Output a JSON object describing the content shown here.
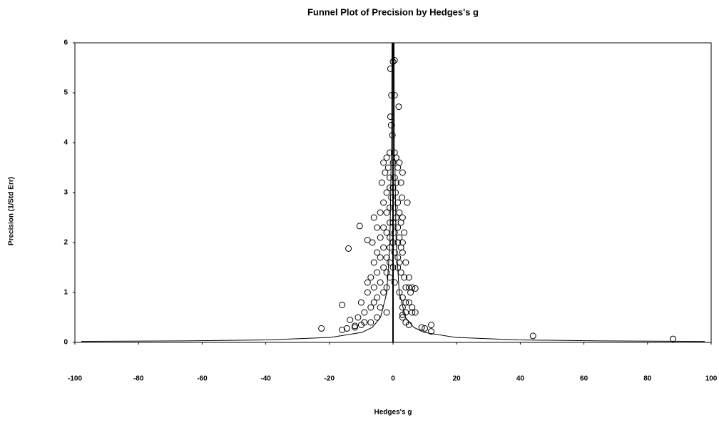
{
  "chart_data": {
    "type": "scatter",
    "title": "Funnel Plot of Precision by Hedges's g",
    "x_label": "Hedges's g",
    "y_label": "Precision (1/Std Err)",
    "xlim": [
      -100,
      100
    ],
    "ylim": [
      0,
      6
    ],
    "xticks": [
      -100,
      -80,
      -60,
      -40,
      -20,
      0,
      20,
      40,
      60,
      80,
      100
    ],
    "yticks": [
      0,
      1,
      2,
      3,
      4,
      5,
      6
    ],
    "color": "#000000",
    "mean_line": 0,
    "funnel": {
      "y": [
        0.02,
        0.03,
        0.05,
        0.1,
        0.2,
        0.3,
        0.5,
        1,
        2,
        4,
        6
      ],
      "lower": [
        -98,
        -65.3,
        -39.2,
        -19.6,
        -9.8,
        -6.53,
        -3.92,
        -1.96,
        -0.98,
        -0.49,
        -0.33
      ],
      "upper": [
        98,
        65.3,
        39.2,
        19.6,
        9.8,
        6.53,
        3.92,
        1.96,
        0.98,
        0.49,
        0.33
      ]
    },
    "x": [
      -22.5,
      -16,
      -14,
      -10.5,
      -8,
      -16,
      -14.5,
      -13.5,
      -12,
      12,
      12,
      10,
      44,
      88,
      0,
      0.5,
      -0.8,
      0.5,
      -0.5,
      1.8,
      -0.8,
      -0.6,
      -0.2,
      7,
      5,
      6,
      5,
      3,
      -1,
      0.5,
      -2,
      1,
      -3,
      0,
      2,
      -1.5,
      1.5,
      -2.5,
      3,
      0.5,
      -1,
      -3.5,
      1,
      2.5,
      -1,
      0,
      0.8,
      -2,
      -0.5,
      2.8,
      -3,
      1.5,
      4.5,
      -1,
      0.5,
      -2,
      2,
      -4,
      -6,
      1,
      3,
      -1,
      0,
      2.5,
      -3,
      1.5,
      -5,
      -2,
      0.5,
      3.5,
      -4,
      -1,
      2,
      -6.5,
      0,
      1.5,
      3,
      -3,
      -1,
      2.5,
      -5,
      0.5,
      3,
      -2,
      1.5,
      -4,
      -6,
      -1,
      2,
      4,
      -3,
      0,
      1.5,
      -5,
      -2,
      2.5,
      -7,
      -1,
      3.5,
      5,
      -4,
      0.5,
      -8,
      -6,
      -2,
      4,
      6,
      -8,
      -3,
      2,
      5.5,
      -5,
      3,
      -10,
      -6,
      4,
      5,
      -7,
      -4,
      3,
      6,
      -9,
      -2,
      4,
      7,
      -11,
      -5,
      3,
      -9,
      -7,
      4,
      -10,
      -12,
      9
    ],
    "y": [
      0.28,
      0.75,
      1.88,
      2.33,
      2.05,
      0.25,
      0.28,
      0.45,
      0.33,
      0.35,
      0.22,
      0.28,
      0.13,
      0.07,
      5.62,
      5.65,
      5.48,
      4.95,
      4.95,
      4.72,
      4.52,
      4.35,
      4.15,
      1.08,
      1.1,
      0.6,
      0.35,
      0.55,
      3.8,
      3.8,
      3.7,
      3.7,
      3.6,
      3.6,
      3.6,
      3.5,
      3.5,
      3.4,
      3.4,
      3.3,
      3.3,
      3.2,
      3.2,
      3.2,
      3.1,
      3.1,
      3.0,
      3.0,
      2.9,
      2.9,
      2.8,
      2.8,
      2.8,
      2.7,
      2.7,
      2.6,
      2.6,
      2.6,
      2.5,
      2.5,
      2.5,
      2.4,
      2.4,
      2.4,
      2.3,
      2.3,
      2.3,
      2.2,
      2.2,
      2.2,
      2.1,
      2.1,
      2.1,
      2.0,
      2.0,
      2.0,
      2.0,
      1.9,
      1.9,
      1.9,
      1.8,
      1.8,
      1.8,
      1.7,
      1.7,
      1.7,
      1.6,
      1.6,
      1.6,
      1.6,
      1.5,
      1.5,
      1.5,
      1.4,
      1.4,
      1.4,
      1.3,
      1.3,
      1.3,
      1.3,
      1.2,
      1.2,
      1.2,
      1.1,
      1.1,
      1.1,
      1.1,
      1.0,
      1.0,
      1.0,
      1.0,
      0.9,
      0.9,
      0.8,
      0.8,
      0.8,
      0.8,
      0.7,
      0.7,
      0.7,
      0.7,
      0.6,
      0.6,
      0.6,
      0.6,
      0.5,
      0.5,
      0.5,
      0.4,
      0.4,
      0.4,
      0.35,
      0.3,
      0.3
    ]
  }
}
